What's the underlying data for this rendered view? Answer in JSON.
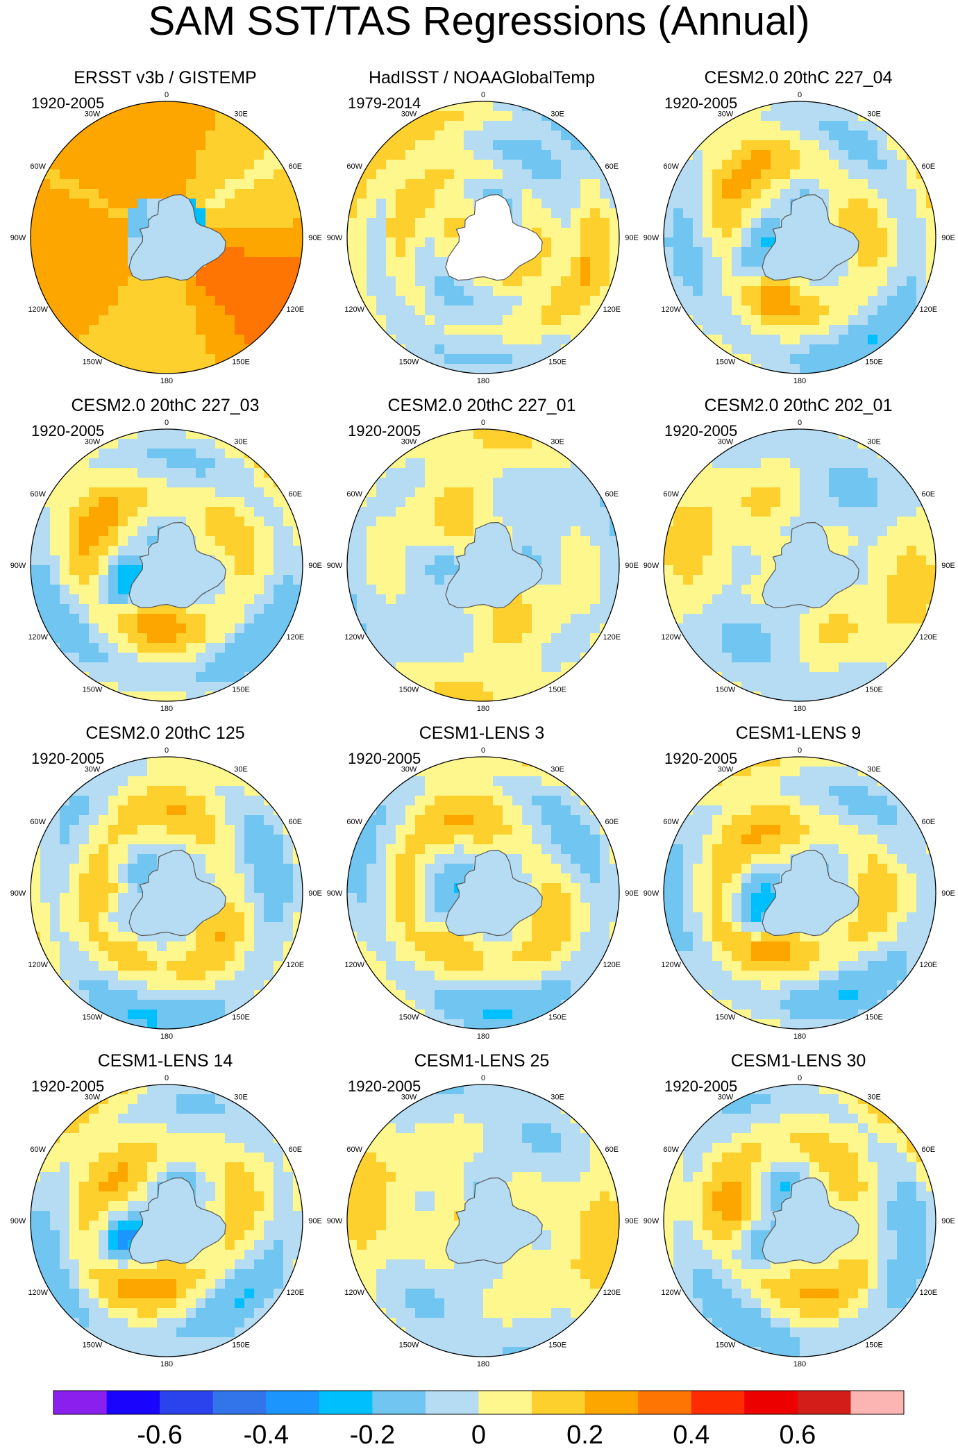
{
  "title": "SAM SST/TAS Regressions (Annual)",
  "colors": {
    "land_fill": "#b5dcf2",
    "coast": "#555555",
    "levels": [
      "#8a1fee",
      "#1a04fc",
      "#2a43ed",
      "#3274e9",
      "#1c96fc",
      "#00bffd",
      "#70c6f0",
      "#b5dcf2",
      "#fef78d",
      "#fed02d",
      "#fea600",
      "#fe7504",
      "#fe2d01",
      "#ec0000",
      "#d21d19",
      "#fdb5b3"
    ]
  },
  "chart_data": {
    "type": "map",
    "projection": "south-polar stereographic",
    "variable": "SST/TAS regression onto SAM index",
    "longitude_labels": [
      "0",
      "30E",
      "60E",
      "90E",
      "120E",
      "150E",
      "180",
      "150W",
      "120W",
      "90W",
      "60W",
      "30W"
    ],
    "colorbar": {
      "levels": [
        -0.7,
        -0.6,
        -0.5,
        -0.4,
        -0.3,
        -0.2,
        -0.1,
        0,
        0.1,
        0.2,
        0.3,
        0.4,
        0.5,
        0.6,
        0.7
      ],
      "tick_labels": [
        "-0.6",
        "-0.4",
        "-0.2",
        "0",
        "0.2",
        "0.4",
        "0.6"
      ],
      "tick_values": [
        -0.6,
        -0.4,
        -0.2,
        0,
        0.2,
        0.4,
        0.6
      ]
    },
    "panels": [
      {
        "name": "ERSST v3b / GISTEMP",
        "years": "1920-2005",
        "style": "obs1"
      },
      {
        "name": "HadISST / NOAAGlobalTemp",
        "years": "1979-2014",
        "style": "obs2"
      },
      {
        "name": "CESM2.0 20thC 227_04",
        "years": "1920-2005",
        "style": "model"
      },
      {
        "name": "CESM2.0 20thC 227_03",
        "years": "1920-2005",
        "style": "model"
      },
      {
        "name": "CESM2.0 20thC 227_01",
        "years": "1920-2005",
        "style": "weak"
      },
      {
        "name": "CESM2.0 20thC 202_01",
        "years": "1920-2005",
        "style": "weak"
      },
      {
        "name": "CESM2.0 20thC 125",
        "years": "1920-2005",
        "style": "model"
      },
      {
        "name": "CESM1-LENS 3",
        "years": "1920-2005",
        "style": "model"
      },
      {
        "name": "CESM1-LENS 9",
        "years": "1920-2005",
        "style": "model"
      },
      {
        "name": "CESM1-LENS 14",
        "years": "1920-2005",
        "style": "model"
      },
      {
        "name": "CESM1-LENS 25",
        "years": "1920-2005",
        "style": "weak"
      },
      {
        "name": "CESM1-LENS 30",
        "years": "1920-2005",
        "style": "model"
      }
    ]
  }
}
